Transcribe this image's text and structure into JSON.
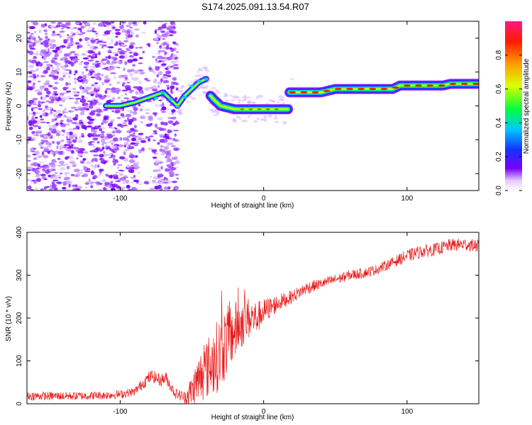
{
  "title": "S174.2025.091.13.54.R07",
  "chart_data": [
    {
      "type": "heatmap",
      "xlabel": "Height of straight line (km)",
      "ylabel": "Frequency (Hz)",
      "xlim": [
        -165,
        150
      ],
      "ylim": [
        -25,
        25
      ],
      "xticks": [
        -100,
        0,
        100
      ],
      "yticks": [
        -20,
        -10,
        0,
        10,
        20
      ],
      "colorbar": {
        "label": "Normalized spectral amplitude",
        "range": [
          0,
          1
        ],
        "ticks": [
          "0.0",
          "0.2",
          "0.4",
          "0.6",
          "0.8"
        ],
        "tick_values": [
          0.0,
          0.2,
          0.4,
          0.6,
          0.8
        ]
      },
      "ridge": {
        "x": [
          -110,
          -100,
          -90,
          -80,
          -70,
          -60,
          -55,
          -50,
          -45,
          -40,
          -37,
          -35,
          -30,
          -25,
          -20,
          -10,
          0,
          10,
          17,
          18,
          20,
          30,
          40,
          50,
          60,
          70,
          80,
          90,
          95,
          100,
          110,
          120,
          125,
          130,
          140,
          150
        ],
        "y": [
          0,
          0,
          1,
          2.5,
          4,
          0,
          3,
          5,
          7,
          8,
          3,
          2,
          0,
          -0.5,
          -1,
          -1,
          -1,
          -1,
          -1,
          4,
          4,
          4,
          4,
          5,
          5,
          5,
          5,
          5,
          6,
          6,
          6,
          6,
          6,
          6.5,
          6.5,
          6.5
        ]
      },
      "noise_region": [
        -165,
        -60
      ]
    },
    {
      "type": "line",
      "xlabel": "Height of straight line (km)",
      "ylabel": "SNR (10 * v/v)",
      "xlim": [
        -165,
        150
      ],
      "ylim": [
        0,
        400
      ],
      "xticks": [
        -100,
        0,
        100
      ],
      "yticks": [
        0,
        100,
        200,
        300,
        400
      ],
      "series": [
        {
          "x": [
            -165,
            -150,
            -130,
            -110,
            -100,
            -90,
            -82,
            -78,
            -72,
            -68,
            -62,
            -55,
            -50,
            -45,
            -40,
            -35,
            -30,
            -25,
            -20,
            -15,
            -10,
            -5,
            0,
            5,
            10,
            20,
            30,
            40,
            50,
            60,
            70,
            80,
            90,
            100,
            110,
            120,
            130,
            140,
            150
          ],
          "values": [
            18,
            18,
            18,
            20,
            22,
            28,
            55,
            65,
            55,
            60,
            25,
            15,
            30,
            60,
            80,
            100,
            120,
            150,
            170,
            190,
            200,
            200,
            215,
            225,
            235,
            250,
            270,
            280,
            290,
            300,
            305,
            315,
            330,
            345,
            355,
            360,
            370,
            372,
            368
          ],
          "amplitude": [
            10,
            10,
            10,
            10,
            10,
            10,
            15,
            15,
            15,
            15,
            12,
            15,
            40,
            60,
            70,
            80,
            90,
            80,
            70,
            60,
            50,
            40,
            30,
            25,
            20,
            15,
            15,
            12,
            12,
            12,
            12,
            12,
            12,
            15,
            15,
            15,
            15,
            15,
            15
          ]
        }
      ]
    }
  ]
}
